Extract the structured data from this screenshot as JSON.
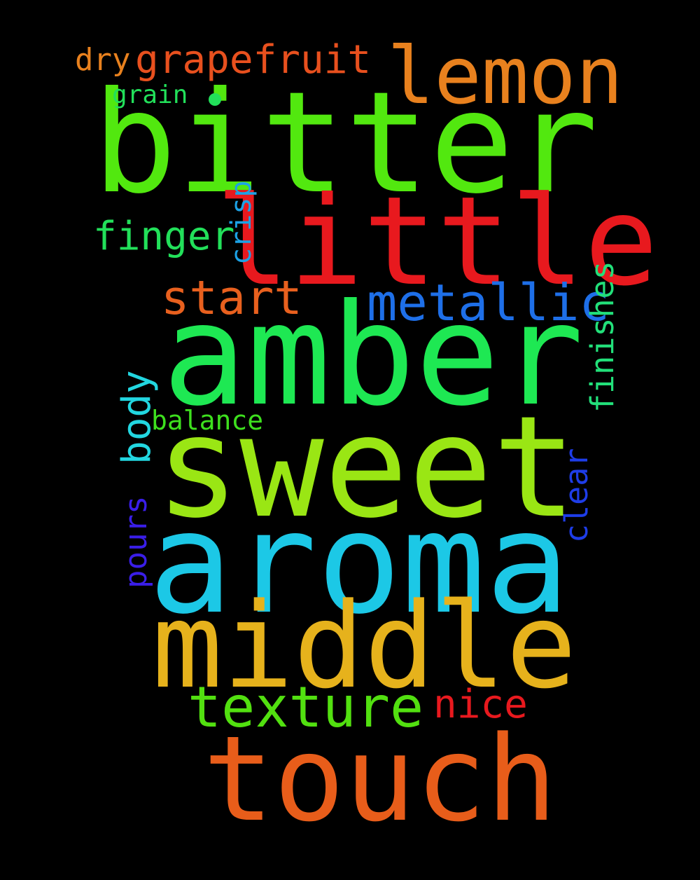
{
  "cloud": {
    "words": [
      {
        "text": "bitter",
        "color": "#52e80f"
      },
      {
        "text": "little",
        "color": "#e8191e"
      },
      {
        "text": "amber",
        "color": "#1ee853"
      },
      {
        "text": "sweet",
        "color": "#9ae614"
      },
      {
        "text": "aroma",
        "color": "#1cc8e6"
      },
      {
        "text": "middle",
        "color": "#e6b21c"
      },
      {
        "text": "touch",
        "color": "#e85d1a"
      },
      {
        "text": "lemon",
        "color": "#e8811e"
      },
      {
        "text": "grapefruit",
        "color": "#e8501e"
      },
      {
        "text": "dry",
        "color": "#e8811e"
      },
      {
        "text": "grain",
        "color": "#22e05a"
      },
      {
        "text": "crisp",
        "color": "#1ca2e6"
      },
      {
        "text": "finishes",
        "color": "#22e07a"
      },
      {
        "text": "finger",
        "color": "#22e05a"
      },
      {
        "text": "start",
        "color": "#e8601e"
      },
      {
        "text": "metallic",
        "color": "#1e6fe8"
      },
      {
        "text": "body",
        "color": "#22d6e0"
      },
      {
        "text": "clear",
        "color": "#1e3de8"
      },
      {
        "text": "balance",
        "color": "#3ee01e"
      },
      {
        "text": "pours",
        "color": "#3a1ee8"
      },
      {
        "text": "texture",
        "color": "#52e010"
      },
      {
        "text": "nice",
        "color": "#e8191e"
      }
    ]
  }
}
